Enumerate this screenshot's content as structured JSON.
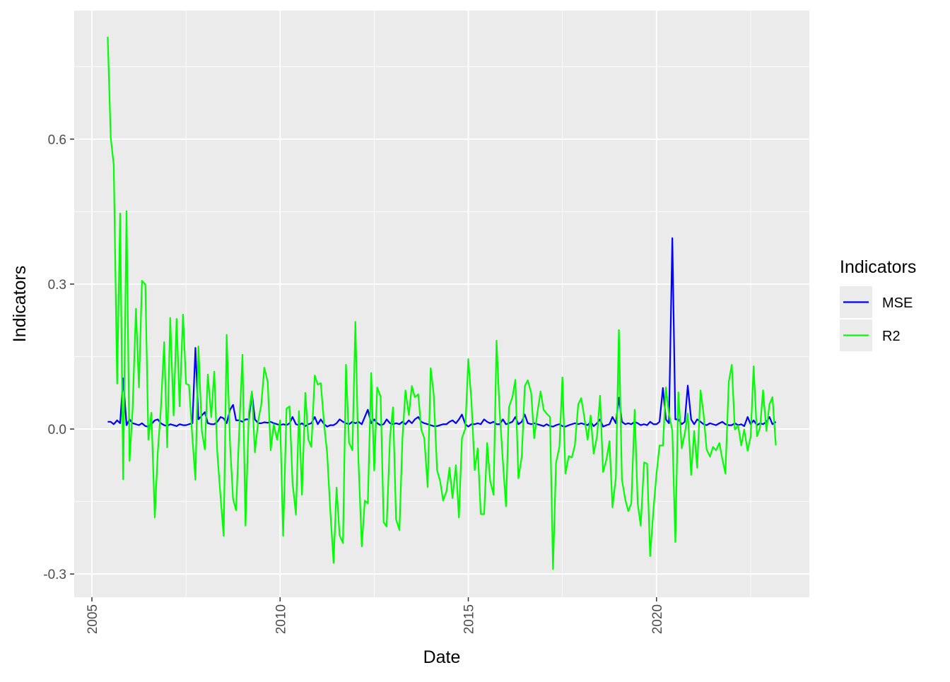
{
  "chart_data": {
    "type": "line",
    "x_label": "Date",
    "y_label": "Indicators",
    "legend_title": "Indicators",
    "legend": "right",
    "grid": true,
    "xlim": [
      2004.53,
      2024.06
    ],
    "xticks": [
      2005,
      2010,
      2015,
      2020
    ],
    "ylim": [
      -0.348,
      0.866
    ],
    "yticks": [
      0.6,
      0.3,
      {
        "value": 0,
        "label": "0.0"
      },
      -0.3
    ],
    "x": [
      2005.42,
      2005.5,
      2005.58,
      2005.67,
      2005.75,
      2005.83,
      2005.92,
      2006,
      2006.08,
      2006.17,
      2006.25,
      2006.33,
      2006.42,
      2006.5,
      2006.58,
      2006.67,
      2006.75,
      2006.83,
      2006.92,
      2007,
      2007.08,
      2007.17,
      2007.25,
      2007.33,
      2007.42,
      2007.5,
      2007.58,
      2007.67,
      2007.75,
      2007.83,
      2007.92,
      2008,
      2008.08,
      2008.17,
      2008.25,
      2008.33,
      2008.42,
      2008.5,
      2008.58,
      2008.67,
      2008.75,
      2008.83,
      2008.92,
      2009,
      2009.08,
      2009.17,
      2009.25,
      2009.33,
      2009.42,
      2009.5,
      2009.58,
      2009.67,
      2009.75,
      2009.83,
      2009.92,
      2010,
      2010.08,
      2010.17,
      2010.25,
      2010.33,
      2010.42,
      2010.5,
      2010.58,
      2010.67,
      2010.75,
      2010.83,
      2010.92,
      2011,
      2011.08,
      2011.17,
      2011.25,
      2011.33,
      2011.42,
      2011.5,
      2011.58,
      2011.67,
      2011.75,
      2011.83,
      2011.92,
      2012,
      2012.08,
      2012.17,
      2012.25,
      2012.33,
      2012.42,
      2012.5,
      2012.58,
      2012.67,
      2012.75,
      2012.83,
      2012.92,
      2013,
      2013.08,
      2013.17,
      2013.25,
      2013.33,
      2013.42,
      2013.5,
      2013.58,
      2013.67,
      2013.75,
      2013.83,
      2013.92,
      2014,
      2014.08,
      2014.17,
      2014.25,
      2014.33,
      2014.42,
      2014.5,
      2014.58,
      2014.67,
      2014.75,
      2014.83,
      2014.92,
      2015,
      2015.08,
      2015.17,
      2015.25,
      2015.33,
      2015.42,
      2015.5,
      2015.58,
      2015.67,
      2015.75,
      2015.83,
      2015.92,
      2016,
      2016.08,
      2016.17,
      2016.25,
      2016.33,
      2016.42,
      2016.5,
      2016.58,
      2016.67,
      2016.75,
      2016.83,
      2016.92,
      2017,
      2017.08,
      2017.17,
      2017.25,
      2017.33,
      2017.42,
      2017.5,
      2017.58,
      2017.67,
      2017.75,
      2017.83,
      2017.92,
      2018,
      2018.08,
      2018.17,
      2018.25,
      2018.33,
      2018.42,
      2018.5,
      2018.58,
      2018.67,
      2018.75,
      2018.83,
      2018.92,
      2019,
      2019.08,
      2019.17,
      2019.25,
      2019.33,
      2019.42,
      2019.5,
      2019.58,
      2019.67,
      2019.75,
      2019.83,
      2019.92,
      2020,
      2020.08,
      2020.17,
      2020.25,
      2020.33,
      2020.42,
      2020.5,
      2020.58,
      2020.67,
      2020.75,
      2020.83,
      2020.92,
      2021,
      2021.08,
      2021.17,
      2021.25,
      2021.33,
      2021.42,
      2021.5,
      2021.58,
      2021.67,
      2021.75,
      2021.83,
      2021.92,
      2022,
      2022.08,
      2022.17,
      2022.25,
      2022.33,
      2022.42,
      2022.5,
      2022.58,
      2022.67,
      2022.75,
      2022.83,
      2022.92,
      2023,
      2023.08,
      2023.17
    ],
    "series": [
      {
        "name": "MSE",
        "color": "#0000ff",
        "values": [
          0.015,
          0.015,
          0.01,
          0.018,
          0.012,
          0.105,
          0.008,
          0.02,
          0.012,
          0.01,
          0.008,
          0.012,
          0.006,
          0.005,
          0.01,
          0.018,
          0.02,
          0.012,
          0.008,
          0.006,
          0.01,
          0.008,
          0.006,
          0.01,
          0.008,
          0.008,
          0.01,
          0.012,
          0.168,
          0.02,
          0.028,
          0.035,
          0.012,
          0.01,
          0.01,
          0.015,
          0.025,
          0.022,
          0.012,
          0.04,
          0.05,
          0.018,
          0.018,
          0.015,
          0.02,
          0.02,
          0.075,
          0.02,
          0.012,
          0.012,
          0.014,
          0.013,
          0.015,
          0.012,
          0.01,
          0.008,
          0.01,
          0.008,
          0.012,
          0.025,
          0.01,
          0.008,
          0.012,
          0.006,
          0.01,
          0.012,
          0.025,
          0.01,
          0.02,
          0.01,
          0.005,
          0.008,
          0.008,
          0.012,
          0.02,
          0.015,
          0.012,
          0.01,
          0.015,
          0.012,
          0.015,
          0.01,
          0.025,
          0.04,
          0.012,
          0.02,
          0.012,
          0.008,
          0.01,
          0.02,
          0.012,
          0.01,
          0.012,
          0.01,
          0.015,
          0.01,
          0.018,
          0.012,
          0.02,
          0.025,
          0.015,
          0.012,
          0.01,
          0.008,
          0.006,
          0.006,
          0.008,
          0.01,
          0.01,
          0.015,
          0.018,
          0.012,
          0.02,
          0.03,
          0.01,
          0.005,
          0.01,
          0.01,
          0.012,
          0.01,
          0.02,
          0.015,
          0.012,
          0.015,
          0.01,
          0.01,
          0.02,
          0.01,
          0.012,
          0.015,
          0.025,
          0.01,
          0.015,
          0.03,
          0.012,
          0.01,
          0.012,
          0.01,
          0.008,
          0.006,
          0.01,
          0.006,
          0.005,
          0.008,
          0.01,
          0.006,
          0.005,
          0.008,
          0.01,
          0.012,
          0.01,
          0.012,
          0.01,
          0.008,
          0.015,
          0.006,
          0.012,
          0.02,
          0.005,
          0.008,
          0.01,
          0.025,
          0.012,
          0.065,
          0.015,
          0.01,
          0.012,
          0.01,
          0.015,
          0.012,
          0.008,
          0.01,
          0.008,
          0.015,
          0.01,
          0.01,
          0.015,
          0.085,
          0.02,
          0.012,
          0.395,
          0.02,
          0.02,
          0.01,
          0.015,
          0.09,
          0.02,
          0.01,
          0.02,
          0.015,
          0.01,
          0.008,
          0.012,
          0.01,
          0.008,
          0.012,
          0.015,
          0.01,
          0.008,
          0.008,
          0.012,
          0.008,
          0.01,
          0.006,
          0.025,
          0.01,
          0.018,
          0.008,
          0.012,
          0.01,
          0.015,
          0.025,
          0.01,
          0.015
        ]
      },
      {
        "name": "R2",
        "color": "#00ff00",
        "values": [
          0.812,
          0.603,
          0.547,
          0.094,
          0.446,
          -0.104,
          0.451,
          -0.066,
          0.04,
          0.249,
          0.086,
          0.307,
          0.299,
          -0.022,
          0.034,
          -0.183,
          -0.048,
          0.04,
          0.18,
          -0.038,
          0.23,
          0.028,
          0.228,
          0.047,
          0.237,
          0.094,
          0.091,
          -0.019,
          -0.105,
          0.171,
          -0.004,
          -0.042,
          0.113,
          0.025,
          0.119,
          -0.048,
          -0.143,
          -0.221,
          0.195,
          -0.032,
          -0.145,
          -0.168,
          0.01,
          0.154,
          -0.2,
          0.034,
          0.078,
          -0.048,
          0.018,
          0.051,
          0.127,
          0.098,
          -0.044,
          0.01,
          -0.022,
          0.018,
          -0.221,
          0.042,
          0.047,
          -0.111,
          -0.177,
          0.037,
          -0.136,
          0.075,
          -0.022,
          -0.037,
          0.111,
          0.092,
          0.095,
          0.01,
          -0.051,
          -0.165,
          -0.277,
          -0.121,
          -0.22,
          -0.236,
          0.133,
          -0.028,
          -0.044,
          0.222,
          -0.063,
          -0.243,
          -0.148,
          -0.154,
          0.116,
          -0.086,
          0.086,
          0.067,
          -0.193,
          -0.202,
          -0.016,
          0.045,
          -0.187,
          -0.209,
          -0.019,
          0.08,
          0.029,
          0.089,
          0.066,
          0.072,
          -0.001,
          -0.019,
          -0.12,
          0.126,
          0.072,
          -0.085,
          -0.107,
          -0.148,
          -0.129,
          -0.08,
          -0.143,
          -0.075,
          -0.183,
          -0.019,
          0.001,
          0.145,
          0.061,
          -0.085,
          -0.04,
          -0.176,
          -0.176,
          -0.029,
          -0.107,
          -0.136,
          0.183,
          0.04,
          -0.069,
          -0.16,
          0.045,
          0.066,
          0.102,
          -0.102,
          -0.057,
          0.089,
          0.101,
          0.075,
          -0.019,
          0.031,
          0.078,
          0.04,
          0.032,
          0.025,
          -0.29,
          -0.07,
          -0.037,
          0.107,
          -0.092,
          -0.056,
          -0.059,
          -0.034,
          0.051,
          0.064,
          0.025,
          -0.022,
          0.028,
          -0.051,
          -0.015,
          0.069,
          -0.089,
          -0.063,
          -0.025,
          -0.162,
          -0.1,
          0.205,
          -0.104,
          -0.146,
          -0.17,
          -0.154,
          0.04,
          -0.154,
          -0.2,
          -0.069,
          -0.072,
          -0.263,
          -0.165,
          -0.092,
          -0.034,
          -0.034,
          0.086,
          0.032,
          -0.004,
          -0.234,
          0.076,
          -0.04,
          -0.01,
          0.032,
          -0.095,
          -0.004,
          -0.08,
          0.08,
          0.031,
          -0.042,
          -0.057,
          -0.037,
          -0.044,
          -0.029,
          -0.063,
          -0.092,
          0.098,
          0.133,
          -0.001,
          0.007,
          -0.034,
          -0.001,
          -0.045,
          -0.016,
          0.13,
          -0.015,
          0.003,
          0.08,
          -0.004,
          0.051,
          0.066,
          -0.034
        ]
      }
    ]
  }
}
